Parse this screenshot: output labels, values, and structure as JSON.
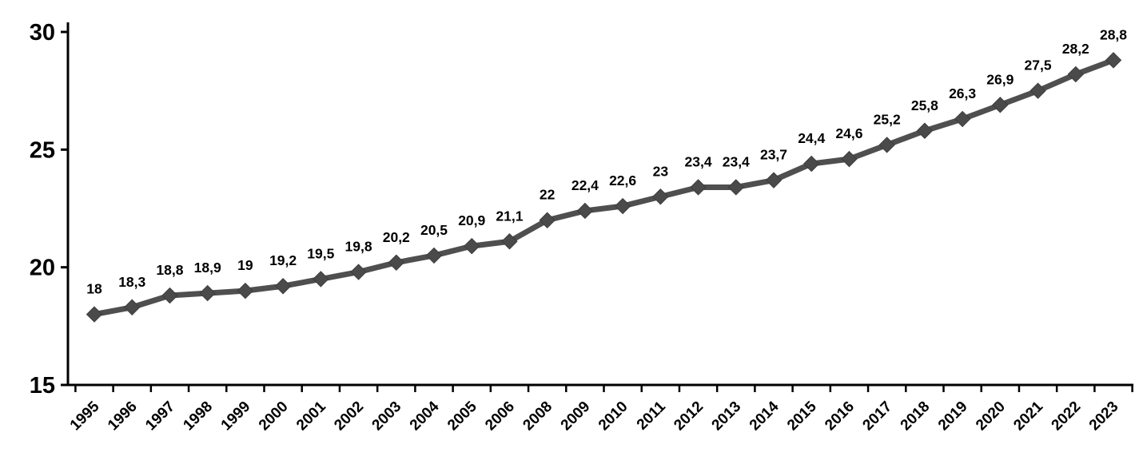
{
  "chart_data": {
    "type": "line",
    "title": "",
    "xlabel": "",
    "ylabel": "",
    "categories": [
      "1995",
      "1996",
      "1997",
      "1998",
      "1999",
      "2000",
      "2001",
      "2002",
      "2003",
      "2004",
      "2005",
      "2006",
      "2008",
      "2009",
      "2010",
      "2011",
      "2012",
      "2013",
      "2014",
      "2015",
      "2016",
      "2017",
      "2018",
      "2019",
      "2020",
      "2021",
      "2022",
      "2023"
    ],
    "values": [
      18,
      18.3,
      18.8,
      18.9,
      19,
      19.2,
      19.5,
      19.8,
      20.2,
      20.5,
      20.9,
      21.1,
      22,
      22.4,
      22.6,
      23,
      23.4,
      23.4,
      23.7,
      24.4,
      24.6,
      25.2,
      25.8,
      26.3,
      26.9,
      27.5,
      28.2,
      28.8
    ],
    "data_labels": [
      "18",
      "18,3",
      "18,8",
      "18,9",
      "19",
      "19,2",
      "19,5",
      "19,8",
      "20,2",
      "20,5",
      "20,9",
      "21,1",
      "22",
      "22,4",
      "22,6",
      "23",
      "23,4",
      "23,4",
      "23,7",
      "24,4",
      "24,6",
      "25,2",
      "25,8",
      "26,3",
      "26,9",
      "27,5",
      "28,2",
      "28,8"
    ],
    "ylim": [
      15,
      30
    ],
    "yticks": [
      15,
      20,
      25,
      30
    ],
    "ytick_labels": [
      "15",
      "20",
      "25",
      "30"
    ],
    "grid": false,
    "legend_position": "none",
    "decimal_separator": ",",
    "marker": "diamond",
    "line_color": "#4f4f4f",
    "marker_color": "#4a4a4a",
    "axis_color": "#000000",
    "label_color": "#000000"
  }
}
